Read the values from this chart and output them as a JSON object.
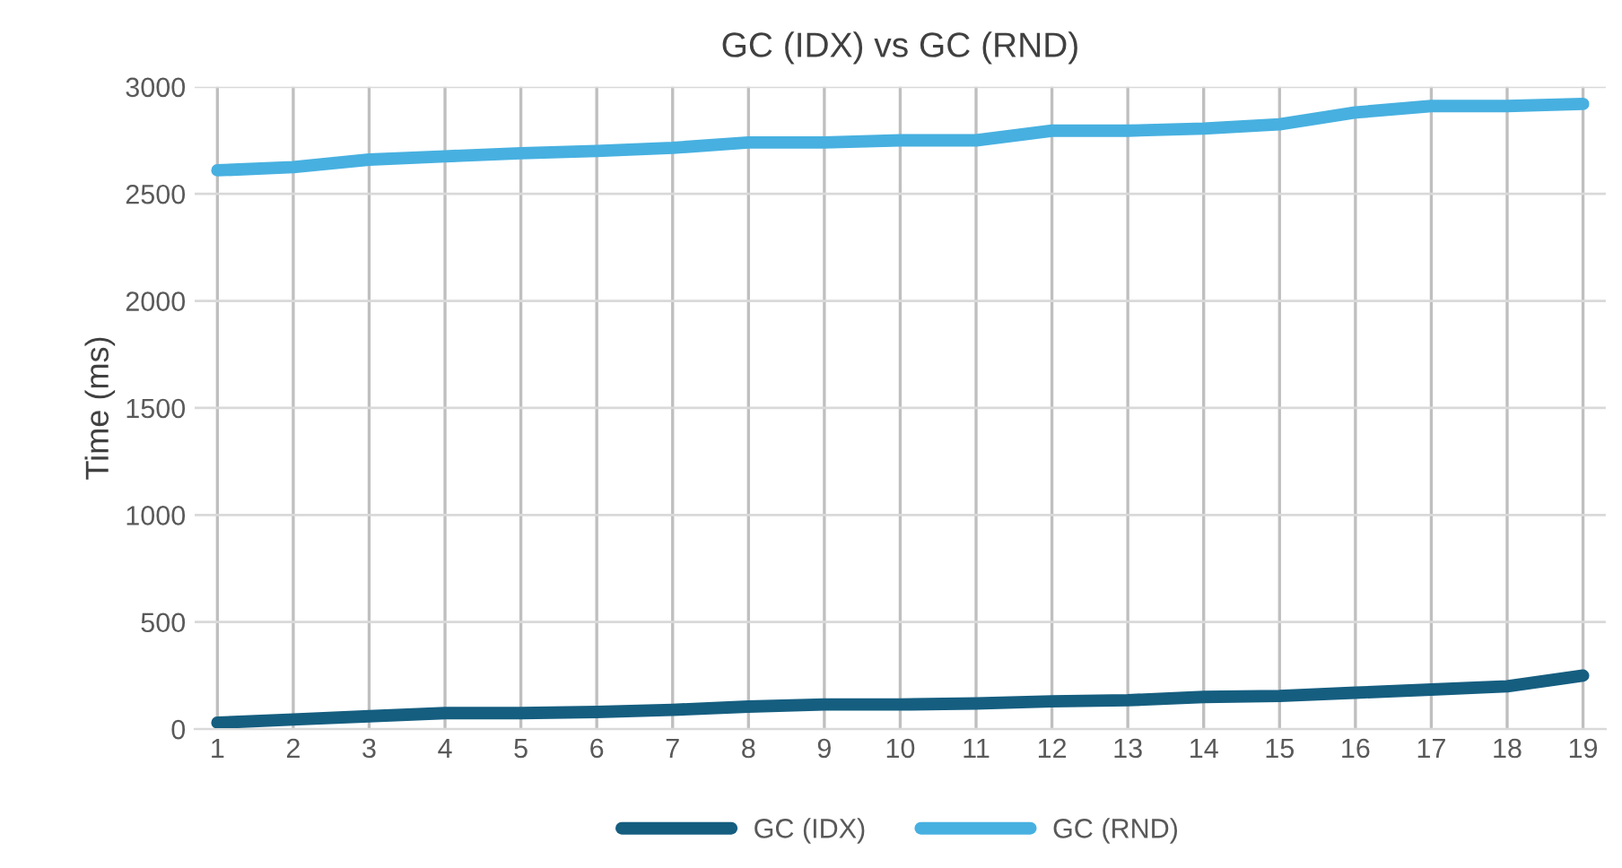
{
  "chart_data": {
    "type": "line",
    "title": "GC (IDX) vs GC (RND)",
    "ylabel": "Time (ms)",
    "categories": [
      "1",
      "2",
      "3",
      "4",
      "5",
      "6",
      "7",
      "8",
      "9",
      "10",
      "11",
      "12",
      "13",
      "14",
      "15",
      "16",
      "17",
      "18",
      "19"
    ],
    "series": [
      {
        "name": "GC (IDX)",
        "color": "#155e80",
        "values": [
          30,
          45,
          60,
          75,
          75,
          80,
          90,
          105,
          115,
          115,
          120,
          130,
          135,
          150,
          155,
          170,
          185,
          200,
          250
        ]
      },
      {
        "name": "GC (RND)",
        "color": "#47b0e0",
        "values": [
          2610,
          2625,
          2660,
          2675,
          2690,
          2700,
          2715,
          2740,
          2740,
          2750,
          2750,
          2795,
          2795,
          2805,
          2825,
          2880,
          2910,
          2910,
          2920
        ]
      }
    ],
    "ylim": [
      0,
      3000
    ],
    "yticks": [
      0,
      500,
      1000,
      1500,
      2000,
      2500,
      3000
    ],
    "grid": true,
    "legend": "bottom",
    "marker": "none",
    "line_style": "solid"
  }
}
